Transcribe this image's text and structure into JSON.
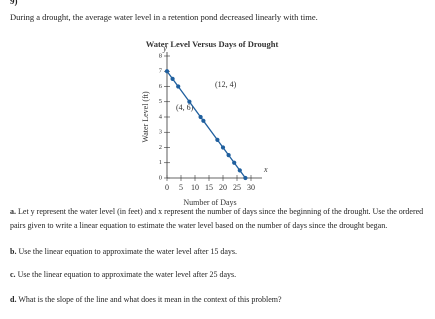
{
  "problem_number": "9)",
  "intro": "During a drought, the average water level in a retention pond decreased linearly with time.",
  "chart_data": {
    "type": "line",
    "title": "Water Level Versus Days of Drought",
    "xlabel": "Number of Days",
    "ylabel": "Water Level (ft)",
    "x_axis_symbol": "x",
    "y_axis_symbol": "y",
    "annotations": [
      "(12, 4)",
      "(4, 6)"
    ],
    "x": [
      0,
      2,
      4,
      8,
      12,
      13,
      18,
      20,
      22,
      24,
      26,
      28
    ],
    "series": [
      {
        "name": "Water level",
        "color": "#1f5f9e",
        "values": [
          7,
          6.5,
          6,
          5,
          4,
          3.75,
          2.5,
          2,
          1.5,
          1,
          0.5,
          0
        ]
      }
    ],
    "xlim": [
      0,
      30
    ],
    "ylim": [
      0,
      8
    ],
    "xticks": [
      0,
      5,
      10,
      15,
      20,
      25,
      30
    ],
    "yticks": [
      0,
      1,
      2,
      3,
      4,
      5,
      6,
      7,
      8
    ],
    "grid": false
  },
  "questions": [
    {
      "label": "a.",
      "text": "Let y represent the water level (in feet) and x represent the number of days since the beginning of the drought. Use the ordered pairs given to write a linear equation to estimate the water level based on the number of days since the drought began."
    },
    {
      "label": "b.",
      "text": "Use the linear equation to approximate the water level after 15 days."
    },
    {
      "label": "c.",
      "text": "Use the linear equation to approximate the water level after 25 days."
    },
    {
      "label": "d.",
      "text": "What is the slope of the line and what does it mean in the context of this problem?"
    }
  ]
}
